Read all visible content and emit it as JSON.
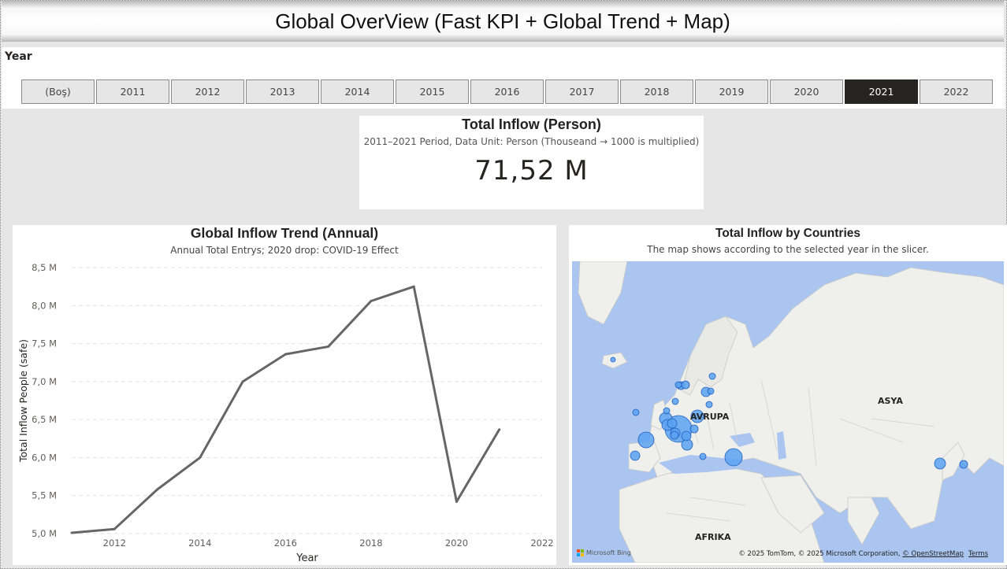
{
  "header": {
    "title": "Global OverView (Fast KPI + Global Trend + Map)"
  },
  "slicer": {
    "title": "Year",
    "options": [
      "(Boş)",
      "2011",
      "2012",
      "2013",
      "2014",
      "2015",
      "2016",
      "2017",
      "2018",
      "2019",
      "2020",
      "2021",
      "2022"
    ],
    "selected": "2021"
  },
  "kpi": {
    "title": "Total Inflow (Person)",
    "subtitle": "2011–2021 Period, Data Unit:  Person (Thouseand → 1000 is multiplied)",
    "value": "71,52 M"
  },
  "trend": {
    "title": "Global Inflow Trend (Annual)",
    "subtitle": "Annual Total Entrys; 2020 drop: COVID-19 Effect"
  },
  "chart_data": {
    "type": "line",
    "title": "Global Inflow Trend (Annual)",
    "subtitle": "Annual Total Entrys; 2020 drop: COVID-19 Effect",
    "xlabel": "Year",
    "ylabel": "Total Inflow People (safe)",
    "x": [
      2011,
      2012,
      2013,
      2014,
      2015,
      2016,
      2017,
      2018,
      2019,
      2020,
      2021
    ],
    "series": [
      {
        "values": [
          5.01,
          5.06,
          5.58,
          6.0,
          7.0,
          7.36,
          7.46,
          8.06,
          8.25,
          5.42,
          6.37
        ]
      }
    ],
    "xlim": [
      2011,
      2022
    ],
    "xticks": [
      2012,
      2014,
      2016,
      2018,
      2020,
      2022
    ],
    "ylim": [
      5.0,
      8.5
    ],
    "yticks": [
      5.0,
      5.5,
      6.0,
      6.5,
      7.0,
      7.5,
      8.0,
      8.5
    ],
    "ytick_labels": [
      "5,0 M",
      "5,5 M",
      "6,0 M",
      "6,5 M",
      "7,0 M",
      "7,5 M",
      "8,0 M",
      "8,5 M"
    ],
    "line_color": "#666666",
    "grid": "horizontal dashed"
  },
  "map": {
    "title": "Total Inflow by Countries",
    "subtitle": "The map shows according to the selected year in the slicer.",
    "labels": {
      "europe": "AVRUPA",
      "asia": "ASYA",
      "africa": "AFRIKA"
    },
    "attribution": "© 2025 TomTom, © 2025 Microsoft Corporation, ",
    "attribution_osm": "© OpenStreetMap",
    "terms": "Terms",
    "logo_text": "Microsoft Bing",
    "bubble_color": "#5aa2f2"
  }
}
